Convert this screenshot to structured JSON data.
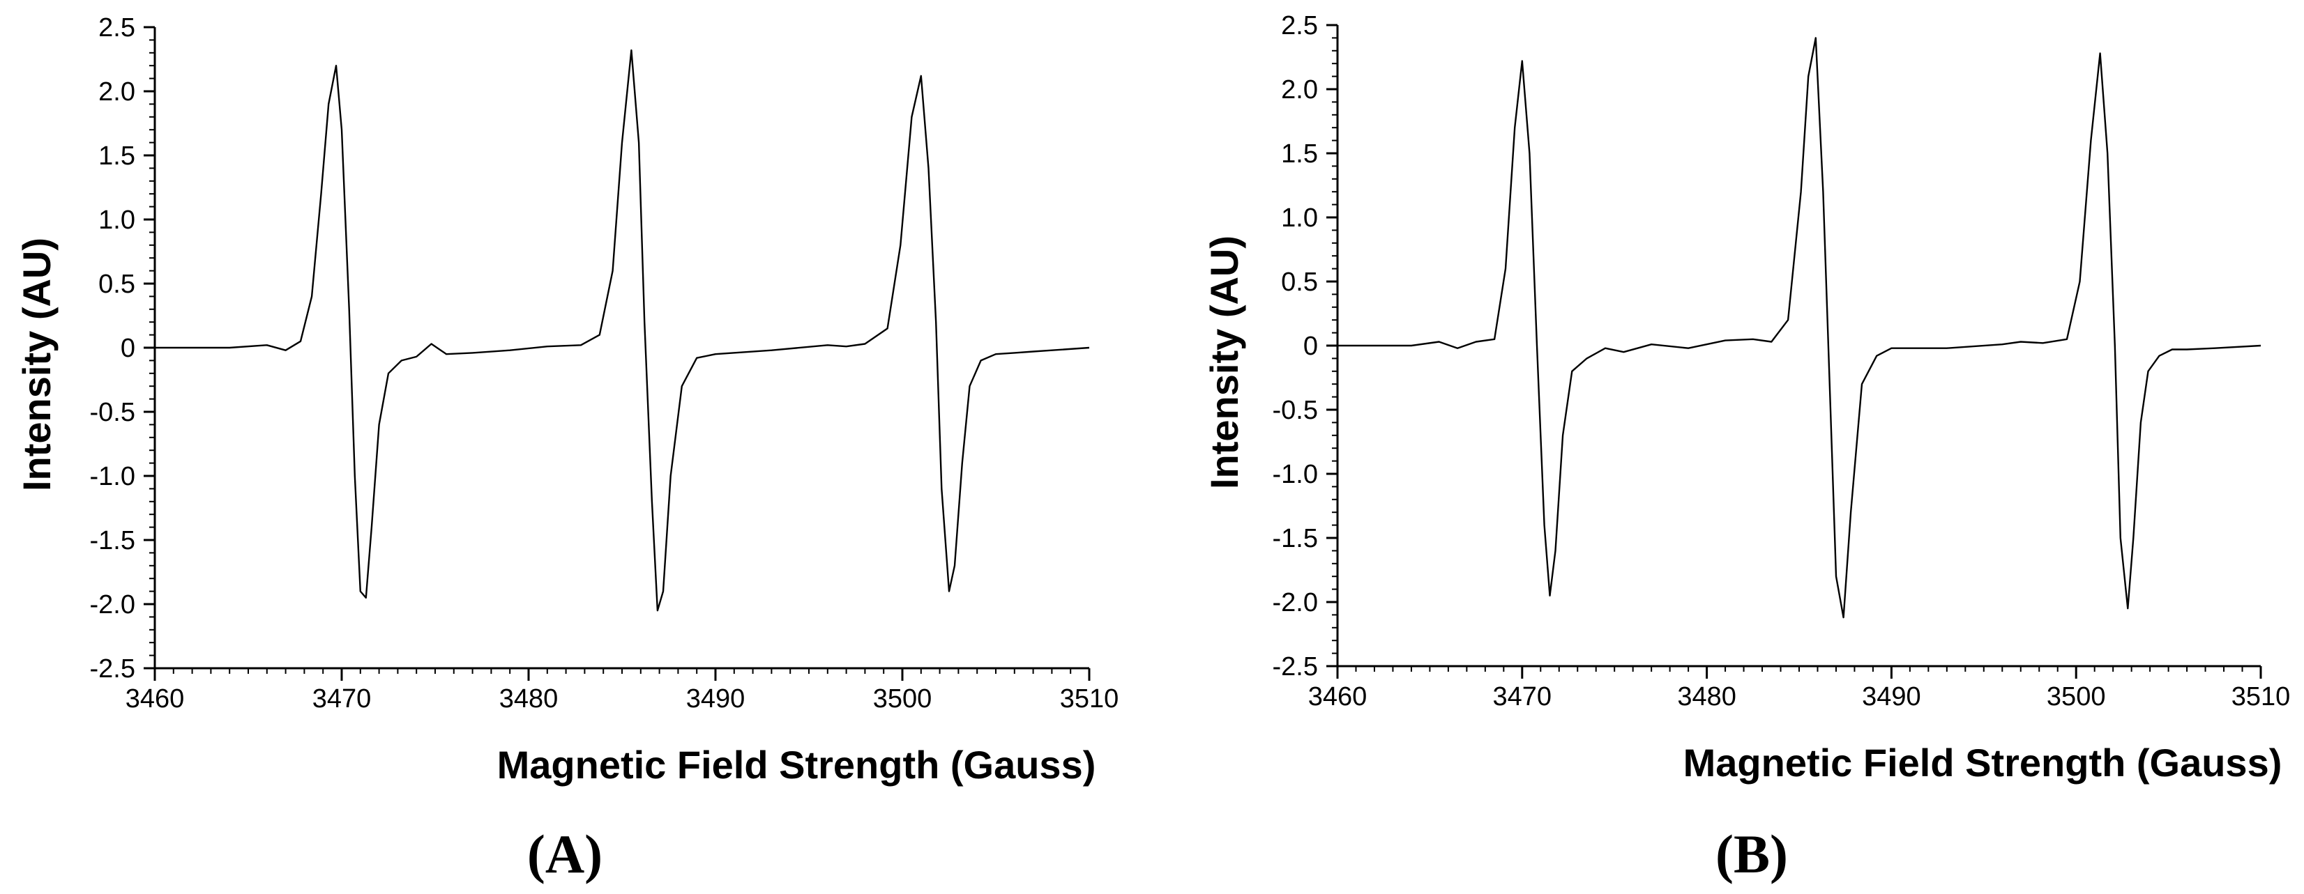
{
  "chart_data": [
    {
      "type": "line",
      "panel_label": "(A)",
      "xlabel": "Magnetic Field Strength (Gauss)",
      "ylabel": "Intensity (AU)",
      "xlim": [
        3460,
        3510
      ],
      "ylim": [
        -2.5,
        2.5
      ],
      "xticks": [
        3460,
        3470,
        3480,
        3490,
        3500,
        3510
      ],
      "yticks": [
        "2.5",
        "2.0",
        "1.5",
        "1.0",
        "0.5",
        "0",
        "-0.5",
        "-1.0",
        "-1.5",
        "-2.0",
        "-2.5"
      ],
      "grid": false,
      "series": [
        {
          "x": [
            3460,
            3464,
            3466,
            3467,
            3467.8,
            3468.4,
            3468.9,
            3469.3,
            3469.7,
            3470.0,
            3470.4,
            3470.7,
            3471.0,
            3471.3,
            3471.6,
            3472.0,
            3472.5,
            3473.2,
            3474.0,
            3474.8,
            3475.6,
            3477,
            3479,
            3481,
            3482.8,
            3483.8,
            3484.5,
            3485.0,
            3485.5,
            3485.9,
            3486.2,
            3486.6,
            3486.9,
            3487.2,
            3487.6,
            3488.2,
            3489.0,
            3490,
            3493,
            3496,
            3497,
            3498,
            3499.2,
            3499.9,
            3500.5,
            3501.0,
            3501.4,
            3501.8,
            3502.1,
            3502.5,
            3502.8,
            3503.2,
            3503.6,
            3504.2,
            3505.0,
            3506,
            3507,
            3508,
            3510
          ],
          "y": [
            0,
            0,
            0.02,
            -0.02,
            0.05,
            0.4,
            1.2,
            1.9,
            2.2,
            1.7,
            0.3,
            -1.0,
            -1.9,
            -1.95,
            -1.4,
            -0.6,
            -0.2,
            -0.1,
            -0.07,
            0.03,
            -0.05,
            -0.04,
            -0.02,
            0.01,
            0.02,
            0.1,
            0.6,
            1.6,
            2.32,
            1.6,
            0.2,
            -1.2,
            -2.05,
            -1.9,
            -1.0,
            -0.3,
            -0.08,
            -0.05,
            -0.02,
            0.02,
            0.01,
            0.03,
            0.15,
            0.8,
            1.8,
            2.12,
            1.4,
            0.2,
            -1.1,
            -1.9,
            -1.7,
            -0.9,
            -0.3,
            -0.1,
            -0.05,
            -0.04,
            -0.03,
            -0.02,
            0
          ]
        }
      ]
    },
    {
      "type": "line",
      "panel_label": "(B)",
      "xlabel": "Magnetic Field Strength (Gauss)",
      "ylabel": "Intensity (AU)",
      "xlim": [
        3460,
        3510
      ],
      "ylim": [
        -2.5,
        2.5
      ],
      "xticks": [
        3460,
        3470,
        3480,
        3490,
        3500,
        3510
      ],
      "yticks": [
        "2.5",
        "2.0",
        "1.5",
        "1.0",
        "0.5",
        "0",
        "-0.5",
        "-1.0",
        "-1.5",
        "-2.0",
        "-2.5"
      ],
      "grid": false,
      "series": [
        {
          "x": [
            3460,
            3464,
            3465.5,
            3466.5,
            3467.5,
            3468.5,
            3469.1,
            3469.6,
            3470.0,
            3470.4,
            3470.8,
            3471.2,
            3471.5,
            3471.8,
            3472.2,
            3472.7,
            3473.5,
            3474.5,
            3475.5,
            3477,
            3479,
            3481,
            3482.5,
            3483.5,
            3484.4,
            3485.1,
            3485.5,
            3485.9,
            3486.3,
            3486.7,
            3487.0,
            3487.4,
            3487.8,
            3488.4,
            3489.2,
            3490,
            3493,
            3496,
            3497,
            3498.2,
            3499.5,
            3500.2,
            3500.8,
            3501.3,
            3501.7,
            3502.1,
            3502.4,
            3502.8,
            3503.1,
            3503.5,
            3503.9,
            3504.5,
            3505.2,
            3506,
            3507.5,
            3510
          ],
          "y": [
            0,
            0,
            0.03,
            -0.02,
            0.03,
            0.05,
            0.6,
            1.7,
            2.22,
            1.5,
            0.0,
            -1.4,
            -1.95,
            -1.6,
            -0.7,
            -0.2,
            -0.1,
            -0.02,
            -0.05,
            0.01,
            -0.02,
            0.04,
            0.05,
            0.03,
            0.2,
            1.2,
            2.1,
            2.4,
            1.2,
            -0.5,
            -1.8,
            -2.12,
            -1.3,
            -0.3,
            -0.08,
            -0.02,
            -0.02,
            0.01,
            0.03,
            0.02,
            0.05,
            0.5,
            1.6,
            2.28,
            1.5,
            0.0,
            -1.5,
            -2.05,
            -1.5,
            -0.6,
            -0.2,
            -0.08,
            -0.03,
            -0.03,
            -0.02,
            0
          ]
        }
      ]
    }
  ]
}
